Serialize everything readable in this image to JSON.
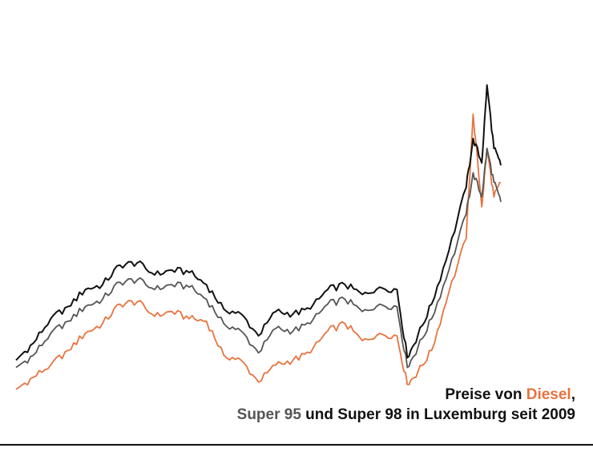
{
  "title": {
    "line1_prefix": "Preise von ",
    "line1_diesel": "Diesel",
    "line1_suffix": ",",
    "line2_s95": "Super 95",
    "line2_rest": " und Super 98 in Luxemburg seit 2009"
  },
  "chart_data": {
    "type": "line",
    "title": "Preise von Diesel, Super 95 und Super 98 in Luxemburg seit 2009",
    "xlabel": "",
    "ylabel": "",
    "grid": false,
    "legend": "none",
    "x": [
      2009.0,
      2009.5,
      2010.0,
      2010.5,
      2011.0,
      2011.5,
      2012.0,
      2012.5,
      2013.0,
      2013.5,
      2014.0,
      2014.5,
      2015.0,
      2015.5,
      2016.0,
      2016.5,
      2017.0,
      2017.5,
      2018.0,
      2018.5,
      2019.0,
      2019.5,
      2020.0,
      2020.3,
      2020.6,
      2021.0,
      2021.5,
      2022.0,
      2022.2,
      2022.45,
      2022.6,
      2022.8,
      2023.0
    ],
    "series": [
      {
        "name": "Diesel",
        "color": "#e8733f",
        "values": [
          0.83,
          0.88,
          0.93,
          0.99,
          1.06,
          1.1,
          1.18,
          1.19,
          1.13,
          1.15,
          1.12,
          1.11,
          0.97,
          0.95,
          0.86,
          0.93,
          0.95,
          0.98,
          1.07,
          1.1,
          1.03,
          1.06,
          1.05,
          0.85,
          0.9,
          0.99,
          1.23,
          1.45,
          1.96,
          1.58,
          1.82,
          1.62,
          1.68
        ]
      },
      {
        "name": "Super 95",
        "color": "#555555",
        "values": [
          0.92,
          0.97,
          1.06,
          1.11,
          1.17,
          1.2,
          1.27,
          1.28,
          1.24,
          1.26,
          1.25,
          1.2,
          1.1,
          1.07,
          0.98,
          1.08,
          1.07,
          1.1,
          1.18,
          1.2,
          1.15,
          1.18,
          1.17,
          0.92,
          1.0,
          1.12,
          1.32,
          1.55,
          1.72,
          1.62,
          1.82,
          1.68,
          1.6
        ]
      },
      {
        "name": "Super 98",
        "color": "#111111",
        "values": [
          0.95,
          1.02,
          1.12,
          1.17,
          1.24,
          1.26,
          1.34,
          1.35,
          1.3,
          1.32,
          1.31,
          1.26,
          1.16,
          1.14,
          1.05,
          1.15,
          1.14,
          1.16,
          1.24,
          1.26,
          1.22,
          1.25,
          1.24,
          0.96,
          1.05,
          1.18,
          1.4,
          1.66,
          1.86,
          1.76,
          2.08,
          1.82,
          1.75
        ]
      }
    ],
    "xlim": [
      2009.0,
      2023.0
    ],
    "ylim": [
      0.8,
      2.1
    ]
  }
}
